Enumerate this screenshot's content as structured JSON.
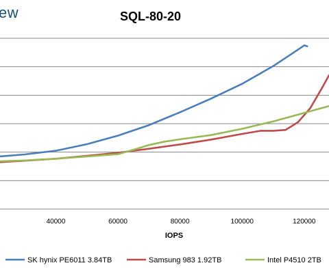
{
  "header": {
    "logo_fragment": "ew"
  },
  "chart_data": {
    "type": "line",
    "title": "SQL-80-20",
    "xlabel": "IOPS",
    "ylabel": "",
    "xlim": [
      22000,
      128000
    ],
    "ylim": [
      0,
      6
    ],
    "xticks": [
      40000,
      60000,
      80000,
      100000,
      120000
    ],
    "grid": true,
    "legend": "bottom",
    "series": [
      {
        "name": "SK hynix PE6011 3.84TB",
        "color": "#4a7ebb",
        "points": [
          [
            22000,
            1.85
          ],
          [
            30000,
            1.92
          ],
          [
            40000,
            2.05
          ],
          [
            50000,
            2.28
          ],
          [
            60000,
            2.58
          ],
          [
            70000,
            2.95
          ],
          [
            80000,
            3.4
          ],
          [
            90000,
            3.88
          ],
          [
            100000,
            4.4
          ],
          [
            110000,
            5.02
          ],
          [
            118000,
            5.6
          ],
          [
            120000,
            5.75
          ],
          [
            121000,
            5.72
          ]
        ]
      },
      {
        "name": "Samsung 983 1.92TB",
        "color": "#be4b48",
        "points": [
          [
            22000,
            1.65
          ],
          [
            30000,
            1.7
          ],
          [
            40000,
            1.77
          ],
          [
            50000,
            1.87
          ],
          [
            60000,
            1.98
          ],
          [
            70000,
            2.12
          ],
          [
            80000,
            2.27
          ],
          [
            90000,
            2.44
          ],
          [
            100000,
            2.64
          ],
          [
            106000,
            2.75
          ],
          [
            110000,
            2.75
          ],
          [
            114000,
            2.78
          ],
          [
            118000,
            3.05
          ],
          [
            122000,
            3.55
          ],
          [
            126000,
            4.3
          ],
          [
            128000,
            4.7
          ]
        ]
      },
      {
        "name": "Intel P4510 2TB",
        "color": "#98b954",
        "points": [
          [
            22000,
            1.68
          ],
          [
            30000,
            1.71
          ],
          [
            40000,
            1.77
          ],
          [
            50000,
            1.85
          ],
          [
            60000,
            1.93
          ],
          [
            65000,
            2.08
          ],
          [
            70000,
            2.25
          ],
          [
            75000,
            2.37
          ],
          [
            80000,
            2.45
          ],
          [
            90000,
            2.6
          ],
          [
            100000,
            2.82
          ],
          [
            110000,
            3.08
          ],
          [
            120000,
            3.38
          ],
          [
            128000,
            3.62
          ]
        ]
      }
    ]
  }
}
